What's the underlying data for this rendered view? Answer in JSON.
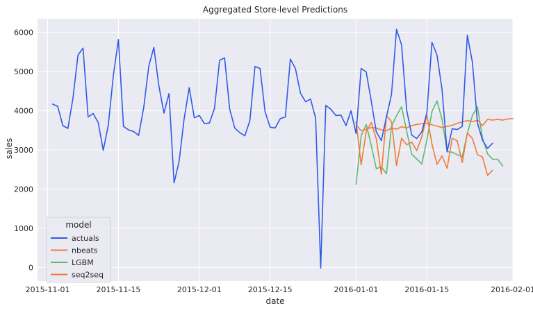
{
  "chart_data": {
    "type": "line",
    "title": "Aggregated Store-level Predictions",
    "xlabel": "date",
    "ylabel": "sales",
    "x_start": "2015-10-30",
    "x_end": "2016-02-01",
    "ylim": [
      -350,
      6350
    ],
    "grid": true,
    "legend": {
      "title": "model",
      "position": "lower-left",
      "entries": [
        "actuals",
        "nbeats",
        "LGBM",
        "seq2seq"
      ]
    },
    "x_ticks": [
      "2015-11-01",
      "2015-11-15",
      "2015-12-01",
      "2015-12-15",
      "2016-01-01",
      "2016-01-15",
      "2016-02-01"
    ],
    "y_ticks": [
      0,
      1000,
      2000,
      3000,
      4000,
      5000,
      6000
    ],
    "colors": {
      "actuals": "#2f5ae8",
      "nbeats": "#f47a3c",
      "LGBM": "#5fb96f",
      "seq2seq": "#f07b35",
      "grid": "#ffffff",
      "plot_bg": "#eaeaf2"
    },
    "series": [
      {
        "name": "actuals",
        "start": "2015-11-02",
        "values": [
          4170,
          4110,
          3620,
          3550,
          4310,
          5420,
          5600,
          3840,
          3930,
          3700,
          2990,
          3640,
          4900,
          5820,
          3600,
          3510,
          3470,
          3370,
          4080,
          5140,
          5620,
          4640,
          3940,
          4440,
          2160,
          2700,
          3800,
          4590,
          3820,
          3880,
          3670,
          3690,
          4060,
          5290,
          5350,
          4050,
          3560,
          3440,
          3360,
          3750,
          5130,
          5080,
          3980,
          3580,
          3560,
          3800,
          3840,
          5320,
          5080,
          4450,
          4230,
          4300,
          3810,
          -20,
          4140,
          4040,
          3880,
          3890,
          3620,
          4000,
          3420,
          5080,
          4990,
          4240,
          3460,
          3240,
          3840,
          4420,
          6080,
          5680,
          4020,
          3380,
          3290,
          3460,
          3950,
          5750,
          5420,
          4540,
          2950,
          3540,
          3520,
          3600,
          5930,
          5240,
          3690,
          3250,
          3040,
          3170
        ]
      },
      {
        "name": "nbeats",
        "start": "2016-01-01",
        "values": [
          3640,
          3490,
          3530,
          3570,
          3560,
          3510,
          3490,
          3560,
          3530,
          3590,
          3560,
          3620,
          3650,
          3670,
          3680,
          3640,
          3610,
          3570,
          3600,
          3630,
          3680,
          3710,
          3750,
          3720,
          3760,
          3620,
          3780,
          3760,
          3780,
          3760,
          3790,
          3800
        ]
      },
      {
        "name": "LGBM",
        "start": "2016-01-01",
        "values": [
          2120,
          3360,
          3650,
          3110,
          2520,
          2570,
          2390,
          3600,
          3880,
          4100,
          3480,
          2890,
          2770,
          2640,
          3260,
          3980,
          4250,
          3780,
          2960,
          2940,
          2880,
          2820,
          3420,
          3880,
          4100,
          3310,
          2900,
          2760,
          2760,
          2590
        ]
      },
      {
        "name": "seq2seq",
        "start": "2016-01-01",
        "values": [
          3720,
          2620,
          3470,
          3700,
          3280,
          2380,
          3880,
          3720,
          2600,
          3300,
          3130,
          3200,
          2980,
          3340,
          3880,
          3150,
          2630,
          2850,
          2530,
          3300,
          3230,
          2680,
          3430,
          3290,
          2880,
          2820,
          2350,
          2480
        ]
      }
    ]
  }
}
